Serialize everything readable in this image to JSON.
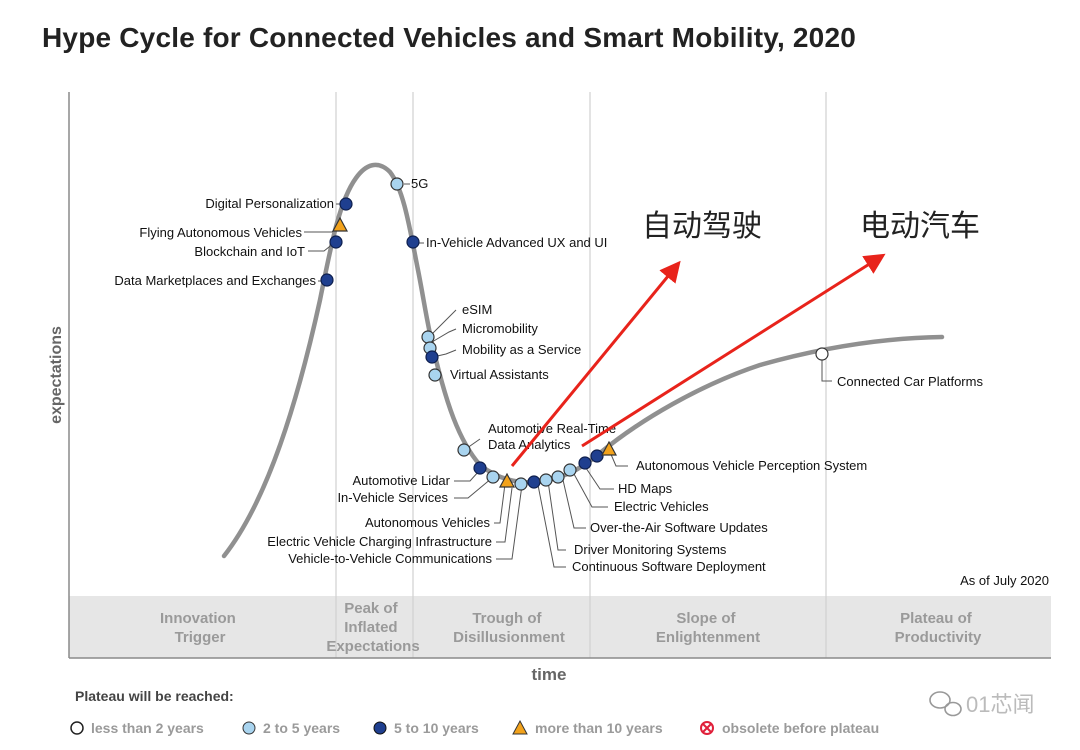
{
  "title": "Hype Cycle for Connected Vehicles and Smart Mobility, 2020",
  "axes": {
    "y_label": "expectations",
    "x_label": "time"
  },
  "as_of": "As of July 2020",
  "phases": [
    {
      "lines": [
        "Innovation",
        "Trigger"
      ]
    },
    {
      "lines": [
        "Peak of",
        "Inflated",
        "Expectations"
      ]
    },
    {
      "lines": [
        "Trough of",
        "Disillusionment"
      ]
    },
    {
      "lines": [
        "Slope of",
        "Enlightenment"
      ]
    },
    {
      "lines": [
        "Plateau of",
        "Productivity"
      ]
    }
  ],
  "technologies": [
    {
      "name": "5G",
      "category": "2-5"
    },
    {
      "name": "Digital Personalization",
      "category": "5-10"
    },
    {
      "name": "Flying Autonomous Vehicles",
      "category": "10+"
    },
    {
      "name": "Blockchain and IoT",
      "category": "5-10"
    },
    {
      "name": "Data Marketplaces and Exchanges",
      "category": "5-10"
    },
    {
      "name": "In-Vehicle Advanced UX and UI",
      "category": "5-10"
    },
    {
      "name": "eSIM",
      "category": "2-5"
    },
    {
      "name": "Micromobility",
      "category": "2-5"
    },
    {
      "name": "Mobility as a Service",
      "category": "5-10"
    },
    {
      "name": "Virtual Assistants",
      "category": "2-5"
    },
    {
      "name": "Automotive Real-Time Data Analytics",
      "category": "2-5"
    },
    {
      "name": "Automotive Lidar",
      "category": "5-10"
    },
    {
      "name": "In-Vehicle Services",
      "category": "2-5"
    },
    {
      "name": "Autonomous Vehicles",
      "category": "10+"
    },
    {
      "name": "Electric Vehicle Charging Infrastructure",
      "category": "2-5"
    },
    {
      "name": "Vehicle-to-Vehicle Communications",
      "category": "5-10"
    },
    {
      "name": "Driver Monitoring Systems",
      "category": "2-5"
    },
    {
      "name": "Continuous Software Deployment",
      "category": "2-5"
    },
    {
      "name": "Over-the-Air Software Updates",
      "category": "2-5"
    },
    {
      "name": "Electric Vehicles",
      "category": "5-10"
    },
    {
      "name": "HD Maps",
      "category": "5-10"
    },
    {
      "name": "Autonomous Vehicle Perception System",
      "category": "10+"
    },
    {
      "name": "Connected Car Platforms",
      "category": "<2"
    }
  ],
  "annotations": {
    "autonomous": "自动驾驶",
    "electric": "电动汽车",
    "arrow_color": "#e8231b"
  },
  "legend": {
    "title": "Plateau will be reached:",
    "items": [
      {
        "label": "less than 2 years",
        "shape": "circle",
        "color": "#ffffff"
      },
      {
        "label": "2 to 5 years",
        "shape": "circle",
        "color": "#a9d4ef"
      },
      {
        "label": "5 to 10 years",
        "shape": "circle",
        "color": "#1f3f8f"
      },
      {
        "label": "more than 10 years",
        "shape": "triangle",
        "color": "#f2a21b"
      },
      {
        "label": "obsolete before plateau",
        "shape": "cross-circle",
        "color": "#e0203a"
      }
    ]
  },
  "watermark": "01芯闻",
  "colors": {
    "curve": "#909090",
    "phase_band": "#e6e6e6"
  }
}
